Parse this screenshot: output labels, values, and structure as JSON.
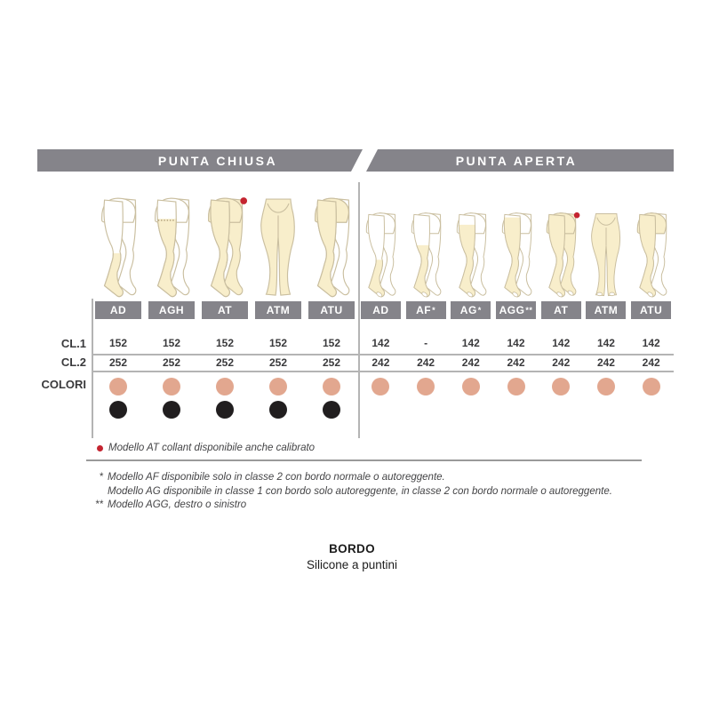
{
  "headers": {
    "left": "PUNTA CHIUSA",
    "right": "PUNTA APERTA"
  },
  "row_labels": {
    "cl1": "CL.1",
    "cl2": "CL.2",
    "colori": "COLORI"
  },
  "colors": {
    "bar_gray": "#85848a",
    "text": "#3a3a3c",
    "line": "#b4b4b4",
    "rule": "#9a9a9a",
    "skin": "#e2a78f",
    "black": "#211e1f",
    "leg_fill": "#f8eecb",
    "leg_outline": "#cabfa0",
    "red": "#c42430"
  },
  "groups": [
    {
      "id": "punta-chiusa",
      "toe": "chiusa",
      "columns": [
        {
          "code": "AD",
          "mark": "",
          "style": "knee",
          "cl1": "152",
          "cl2": "252",
          "dots": [
            "skin",
            "black"
          ],
          "red_dot": false
        },
        {
          "code": "AGH",
          "mark": "",
          "style": "thigh-band",
          "cl1": "152",
          "cl2": "252",
          "dots": [
            "skin",
            "black"
          ],
          "red_dot": false
        },
        {
          "code": "AT",
          "mark": "",
          "style": "tights",
          "cl1": "152",
          "cl2": "252",
          "dots": [
            "skin",
            "black"
          ],
          "red_dot": true
        },
        {
          "code": "ATM",
          "mark": "",
          "style": "maternity",
          "cl1": "152",
          "cl2": "252",
          "dots": [
            "skin",
            "black"
          ],
          "red_dot": false
        },
        {
          "code": "ATU",
          "mark": "",
          "style": "mono-tights",
          "cl1": "152",
          "cl2": "252",
          "dots": [
            "skin",
            "black"
          ],
          "red_dot": false
        }
      ]
    },
    {
      "id": "punta-aperta",
      "toe": "aperta",
      "columns": [
        {
          "code": "AD",
          "mark": "",
          "style": "knee",
          "cl1": "142",
          "cl2": "242",
          "dots": [
            "skin"
          ],
          "red_dot": false
        },
        {
          "code": "AF",
          "mark": "*",
          "style": "above-knee",
          "cl1": "-",
          "cl2": "242",
          "dots": [
            "skin"
          ],
          "red_dot": false
        },
        {
          "code": "AG",
          "mark": "*",
          "style": "thigh",
          "cl1": "142",
          "cl2": "242",
          "dots": [
            "skin"
          ],
          "red_dot": false
        },
        {
          "code": "AGG",
          "mark": "**",
          "style": "thigh-top",
          "cl1": "142",
          "cl2": "242",
          "dots": [
            "skin"
          ],
          "red_dot": false
        },
        {
          "code": "AT",
          "mark": "",
          "style": "tights",
          "cl1": "142",
          "cl2": "242",
          "dots": [
            "skin"
          ],
          "red_dot": true
        },
        {
          "code": "ATM",
          "mark": "",
          "style": "maternity",
          "cl1": "142",
          "cl2": "242",
          "dots": [
            "skin"
          ],
          "red_dot": false
        },
        {
          "code": "ATU",
          "mark": "",
          "style": "mono-tights",
          "cl1": "142",
          "cl2": "242",
          "dots": [
            "skin"
          ],
          "red_dot": false
        }
      ]
    }
  ],
  "footnotes": {
    "red_note": "Modello AT collant disponibile anche calibrato",
    "lines": [
      {
        "mark": "*",
        "text": "Modello AF disponibile solo in classe 2 con bordo normale o autoreggente."
      },
      {
        "mark": "",
        "text": "Modello AG disponibile in classe 1 con bordo solo autoreggente, in classe 2 con bordo normale o autoreggente."
      },
      {
        "mark": "**",
        "text": "Modello AGG, destro o sinistro"
      }
    ]
  },
  "bordo": {
    "title": "BORDO",
    "subtitle": "Silicone a puntini"
  }
}
